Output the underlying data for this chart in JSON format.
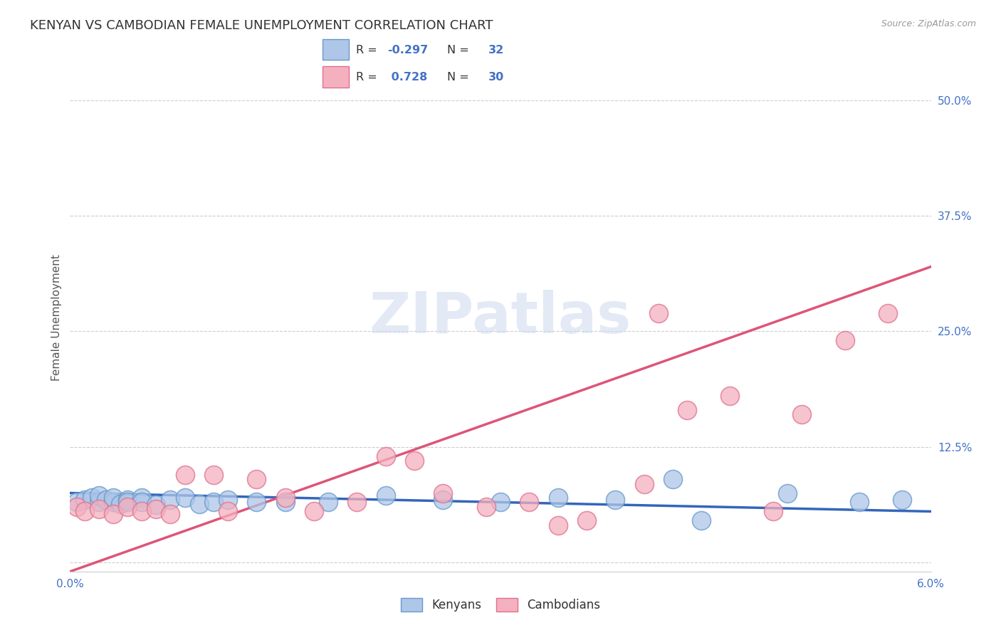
{
  "title": "KENYAN VS CAMBODIAN FEMALE UNEMPLOYMENT CORRELATION CHART",
  "source": "Source: ZipAtlas.com",
  "ylabel": "Female Unemployment",
  "xlim": [
    0.0,
    0.06
  ],
  "ylim": [
    -0.01,
    0.54
  ],
  "yticks": [
    0.0,
    0.125,
    0.25,
    0.375,
    0.5
  ],
  "ytick_labels": [
    "",
    "12.5%",
    "25.0%",
    "37.5%",
    "50.0%"
  ],
  "xticks": [
    0.0,
    0.01,
    0.02,
    0.03,
    0.04,
    0.05,
    0.06
  ],
  "xtick_labels": [
    "0.0%",
    "",
    "",
    "",
    "",
    "",
    "6.0%"
  ],
  "kenyan_color": "#aec6e8",
  "kenyan_edge": "#6699cc",
  "cambodian_color": "#f4b0be",
  "cambodian_edge": "#e07090",
  "kenyan_line_color": "#3366bb",
  "cambodian_line_color": "#dd5577",
  "background_color": "#ffffff",
  "grid_color": "#cccccc",
  "title_fontsize": 13,
  "axis_label_fontsize": 11,
  "tick_fontsize": 11,
  "tick_color": "#4472c4",
  "watermark": "ZIPatlas",
  "kenyan_x": [
    0.0005,
    0.001,
    0.0015,
    0.002,
    0.002,
    0.0025,
    0.003,
    0.003,
    0.0035,
    0.004,
    0.004,
    0.005,
    0.005,
    0.006,
    0.007,
    0.008,
    0.009,
    0.01,
    0.011,
    0.013,
    0.015,
    0.018,
    0.022,
    0.026,
    0.03,
    0.034,
    0.038,
    0.042,
    0.044,
    0.05,
    0.055,
    0.058
  ],
  "kenyan_y": [
    0.065,
    0.068,
    0.07,
    0.065,
    0.072,
    0.068,
    0.065,
    0.07,
    0.063,
    0.068,
    0.065,
    0.07,
    0.065,
    0.062,
    0.068,
    0.07,
    0.063,
    0.065,
    0.068,
    0.065,
    0.065,
    0.065,
    0.072,
    0.068,
    0.065,
    0.07,
    0.068,
    0.09,
    0.045,
    0.075,
    0.065,
    0.068
  ],
  "cambodian_x": [
    0.0005,
    0.001,
    0.002,
    0.003,
    0.004,
    0.005,
    0.006,
    0.007,
    0.008,
    0.01,
    0.011,
    0.013,
    0.015,
    0.017,
    0.02,
    0.022,
    0.024,
    0.026,
    0.029,
    0.032,
    0.034,
    0.036,
    0.04,
    0.041,
    0.043,
    0.046,
    0.049,
    0.051,
    0.054,
    0.057
  ],
  "cambodian_y": [
    0.06,
    0.055,
    0.058,
    0.052,
    0.06,
    0.055,
    0.058,
    0.052,
    0.095,
    0.095,
    0.055,
    0.09,
    0.07,
    0.055,
    0.065,
    0.115,
    0.11,
    0.075,
    0.06,
    0.065,
    0.04,
    0.045,
    0.085,
    0.27,
    0.165,
    0.18,
    0.055,
    0.16,
    0.24,
    0.27
  ],
  "kenyan_line_x": [
    0.0,
    0.06
  ],
  "kenyan_line_y": [
    0.075,
    0.055
  ],
  "cambodian_line_x": [
    0.0,
    0.06
  ],
  "cambodian_line_y": [
    -0.01,
    0.32
  ]
}
